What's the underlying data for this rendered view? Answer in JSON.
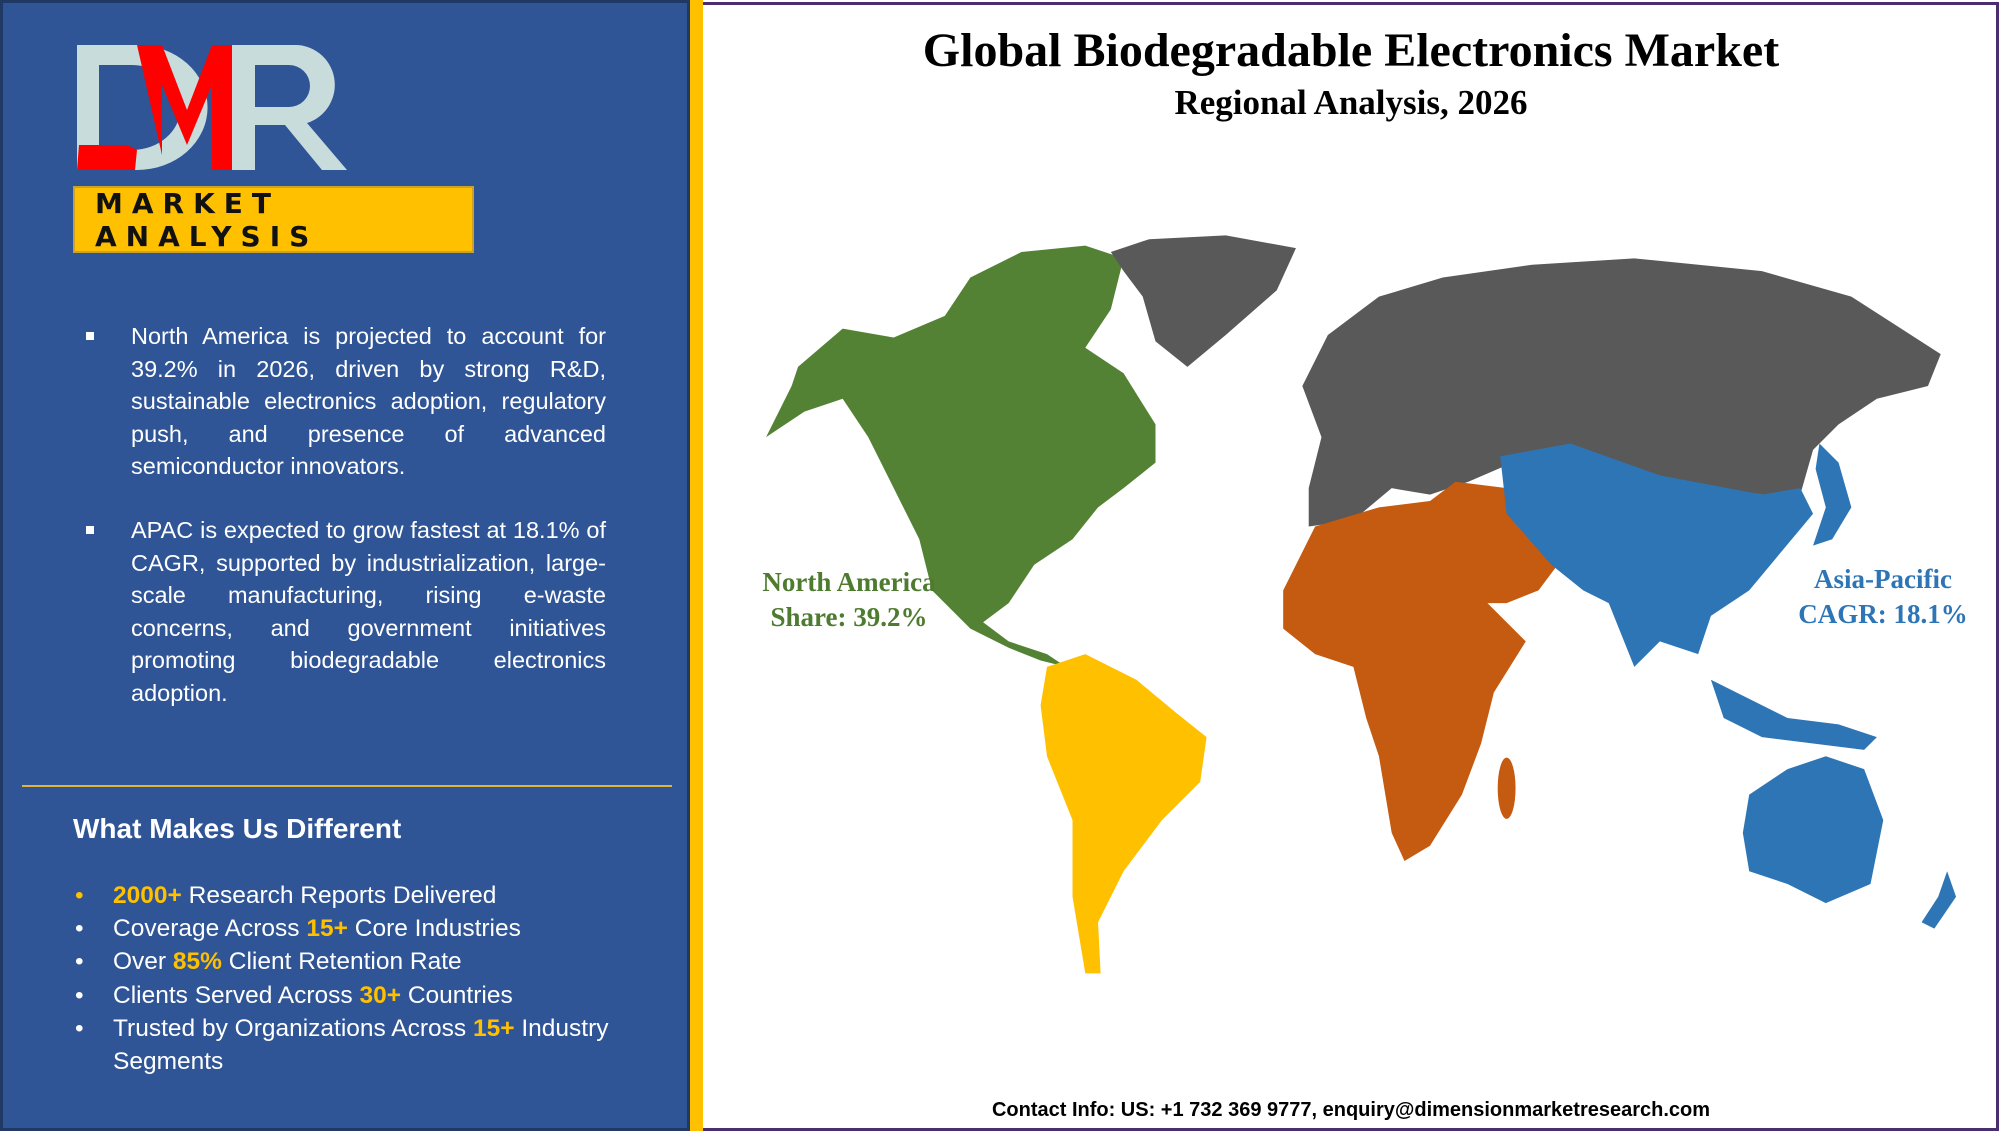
{
  "logo": {
    "text": "DMR",
    "tagline": "MARKET ANALYSIS"
  },
  "highlights": [
    "North America is projected to account for 39.2% in 2026, driven by strong R&D, sustainable electronics adoption, regulatory push, and presence of advanced semiconductor innovators.",
    "APAC is expected to grow fastest at 18.1% of CAGR, supported by industrialization, large-scale manufacturing, rising e-waste concerns, and government initiatives promoting biodegradable electronics adoption."
  ],
  "different": {
    "heading": "What Makes Us Different",
    "items": [
      {
        "hl": "2000+",
        "pre": "",
        "post": " Research Reports Delivered"
      },
      {
        "pre": "Coverage Across ",
        "hl": "15+",
        "post": " Core Industries"
      },
      {
        "pre": "Over ",
        "hl": "85%",
        "post": " Client Retention Rate"
      },
      {
        "pre": "Clients Served Across ",
        "hl": "30+",
        "post": " Countries"
      },
      {
        "pre": "Trusted by Organizations Across ",
        "hl": "15+",
        "post": " Industry Segments"
      }
    ]
  },
  "title": "Global Biodegradable Electronics Market",
  "subtitle": "Regional Analysis, 2026",
  "map": {
    "north_america": {
      "name": "North America",
      "value": "Share: 39.2%",
      "color": "#548235"
    },
    "asia_pacific": {
      "name": "Asia-Pacific",
      "value": "CAGR: 18.1%",
      "color": "#2E75B6"
    },
    "colors": {
      "europe_asia": "#595959",
      "africa_me": "#C55A11",
      "south_america": "#FFC000"
    }
  },
  "contact": "Contact Info: US: +1 732 369 9777, enquiry@dimensionmarketresearch.com"
}
